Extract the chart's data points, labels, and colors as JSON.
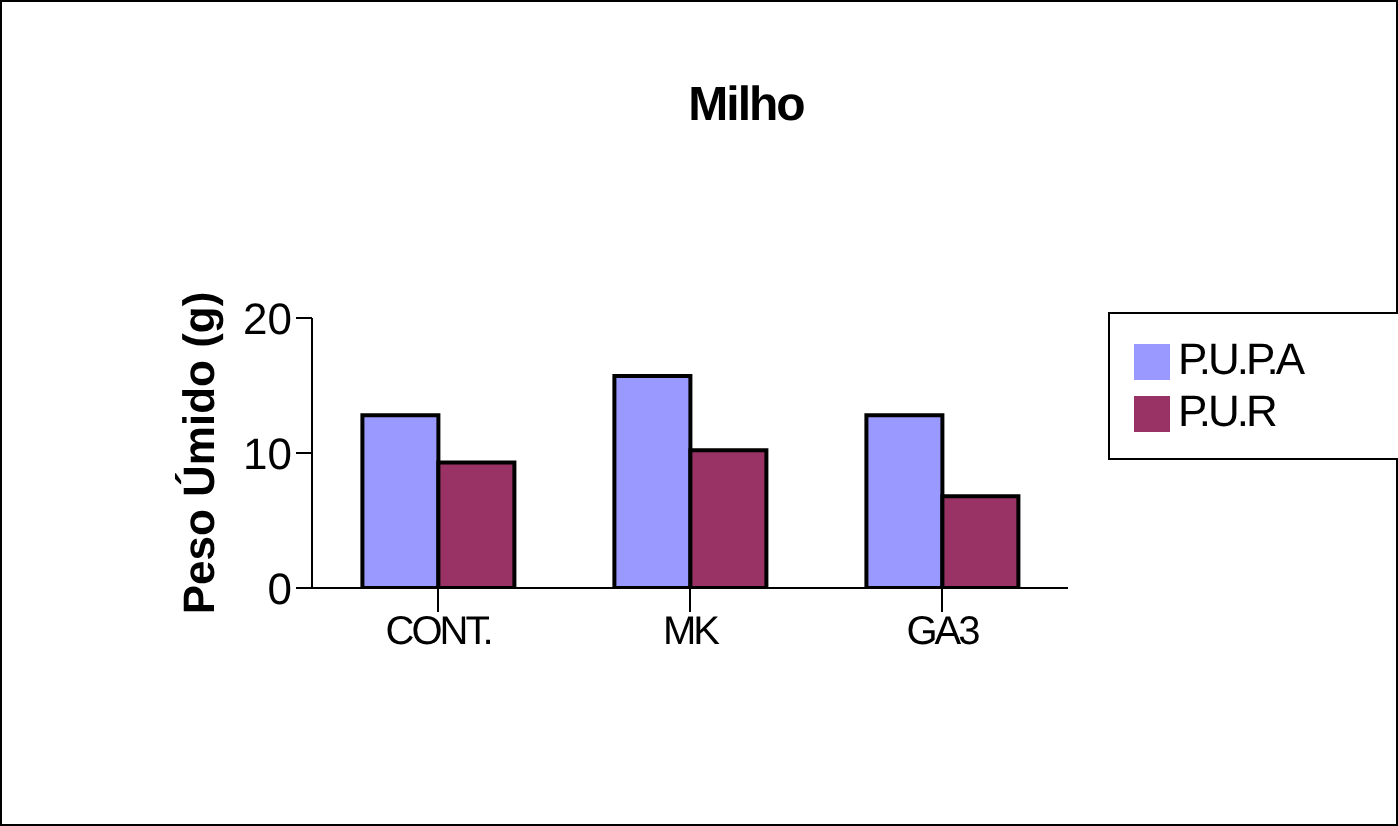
{
  "chart_data": {
    "type": "bar",
    "title": "Milho",
    "ylabel": "Peso Úmido (g)",
    "categories": [
      "CONT.",
      "MK",
      "GA3"
    ],
    "series": [
      {
        "name": "P.U.P.A",
        "color": "#9999ff",
        "values": [
          12.8,
          15.7,
          12.8
        ]
      },
      {
        "name": "P.U.R",
        "color": "#993366",
        "values": [
          9.3,
          10.2,
          6.8
        ]
      }
    ],
    "ylim": [
      0,
      20
    ],
    "yticks": [
      0,
      10,
      20
    ],
    "grid": false,
    "legend": "right"
  }
}
